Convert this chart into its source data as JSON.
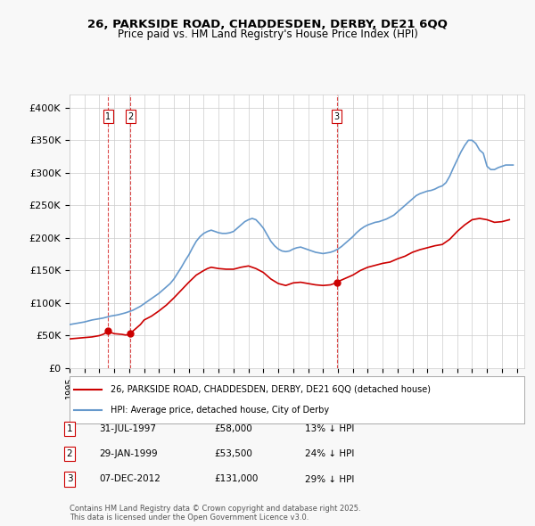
{
  "title": "26, PARKSIDE ROAD, CHADDESDEN, DERBY, DE21 6QQ",
  "subtitle": "Price paid vs. HM Land Registry's House Price Index (HPI)",
  "hpi_label": "HPI: Average price, detached house, City of Derby",
  "property_label": "26, PARKSIDE ROAD, CHADDESDEN, DERBY, DE21 6QQ (detached house)",
  "hpi_color": "#6699cc",
  "property_color": "#cc0000",
  "vline_color": "#cc0000",
  "background_color": "#f8f8f8",
  "plot_bg_color": "#ffffff",
  "ylim": [
    0,
    420000
  ],
  "yticks": [
    0,
    50000,
    100000,
    150000,
    200000,
    250000,
    300000,
    350000,
    400000
  ],
  "ytick_labels": [
    "£0",
    "£50K",
    "£100K",
    "£150K",
    "£200K",
    "£250K",
    "£300K",
    "£350K",
    "£400K"
  ],
  "sale_dates": [
    1997.58,
    1999.08,
    2012.92
  ],
  "sale_prices": [
    58000,
    53500,
    131000
  ],
  "sale_labels": [
    "1",
    "2",
    "3"
  ],
  "table_rows": [
    {
      "num": "1",
      "date": "31-JUL-1997",
      "price": "£58,000",
      "hpi": "13% ↓ HPI"
    },
    {
      "num": "2",
      "date": "29-JAN-1999",
      "price": "£53,500",
      "hpi": "24% ↓ HPI"
    },
    {
      "num": "3",
      "date": "07-DEC-2012",
      "price": "£131,000",
      "hpi": "29% ↓ HPI"
    }
  ],
  "footer": "Contains HM Land Registry data © Crown copyright and database right 2025.\nThis data is licensed under the Open Government Licence v3.0.",
  "hpi_years": [
    1995.0,
    1995.25,
    1995.5,
    1995.75,
    1996.0,
    1996.25,
    1996.5,
    1996.75,
    1997.0,
    1997.25,
    1997.5,
    1997.75,
    1998.0,
    1998.25,
    1998.5,
    1998.75,
    1999.0,
    1999.25,
    1999.5,
    1999.75,
    2000.0,
    2000.25,
    2000.5,
    2000.75,
    2001.0,
    2001.25,
    2001.5,
    2001.75,
    2002.0,
    2002.25,
    2002.5,
    2002.75,
    2003.0,
    2003.25,
    2003.5,
    2003.75,
    2004.0,
    2004.25,
    2004.5,
    2004.75,
    2005.0,
    2005.25,
    2005.5,
    2005.75,
    2006.0,
    2006.25,
    2006.5,
    2006.75,
    2007.0,
    2007.25,
    2007.5,
    2007.75,
    2008.0,
    2008.25,
    2008.5,
    2008.75,
    2009.0,
    2009.25,
    2009.5,
    2009.75,
    2010.0,
    2010.25,
    2010.5,
    2010.75,
    2011.0,
    2011.25,
    2011.5,
    2011.75,
    2012.0,
    2012.25,
    2012.5,
    2012.75,
    2013.0,
    2013.25,
    2013.5,
    2013.75,
    2014.0,
    2014.25,
    2014.5,
    2014.75,
    2015.0,
    2015.25,
    2015.5,
    2015.75,
    2016.0,
    2016.25,
    2016.5,
    2016.75,
    2017.0,
    2017.25,
    2017.5,
    2017.75,
    2018.0,
    2018.25,
    2018.5,
    2018.75,
    2019.0,
    2019.25,
    2019.5,
    2019.75,
    2020.0,
    2020.25,
    2020.5,
    2020.75,
    2021.0,
    2021.25,
    2021.5,
    2021.75,
    2022.0,
    2022.25,
    2022.5,
    2022.75,
    2023.0,
    2023.25,
    2023.5,
    2023.75,
    2024.0,
    2024.25,
    2024.5,
    2024.75
  ],
  "hpi_values": [
    67000,
    68000,
    69000,
    70000,
    71000,
    72500,
    74000,
    75000,
    76000,
    77000,
    78500,
    80000,
    81000,
    82000,
    83500,
    85000,
    87000,
    89000,
    92000,
    95000,
    99000,
    103000,
    107000,
    111000,
    115000,
    120000,
    125000,
    130000,
    137000,
    146000,
    155000,
    165000,
    174000,
    185000,
    195000,
    202000,
    207000,
    210000,
    212000,
    210000,
    208000,
    207000,
    207000,
    208000,
    210000,
    215000,
    220000,
    225000,
    228000,
    230000,
    228000,
    222000,
    215000,
    205000,
    195000,
    188000,
    183000,
    180000,
    179000,
    180000,
    183000,
    185000,
    186000,
    184000,
    182000,
    180000,
    178000,
    177000,
    176000,
    177000,
    178000,
    180000,
    183000,
    187000,
    192000,
    197000,
    202000,
    208000,
    213000,
    217000,
    220000,
    222000,
    224000,
    225000,
    227000,
    229000,
    232000,
    235000,
    240000,
    245000,
    250000,
    255000,
    260000,
    265000,
    268000,
    270000,
    272000,
    273000,
    275000,
    278000,
    280000,
    285000,
    295000,
    308000,
    320000,
    332000,
    342000,
    350000,
    350000,
    345000,
    335000,
    330000,
    310000,
    305000,
    305000,
    308000,
    310000,
    312000,
    312000,
    312000
  ],
  "property_years": [
    1995.0,
    1995.5,
    1996.0,
    1996.5,
    1997.0,
    1997.25,
    1997.5,
    1997.58,
    1997.75,
    1998.0,
    1998.5,
    1998.75,
    1999.0,
    1999.08,
    1999.25,
    1999.5,
    1999.75,
    2000.0,
    2000.5,
    2001.0,
    2001.5,
    2002.0,
    2002.5,
    2003.0,
    2003.5,
    2004.0,
    2004.25,
    2004.5,
    2005.0,
    2005.5,
    2006.0,
    2006.5,
    2007.0,
    2007.5,
    2008.0,
    2008.5,
    2009.0,
    2009.5,
    2010.0,
    2010.5,
    2011.0,
    2011.5,
    2012.0,
    2012.5,
    2012.75,
    2012.92,
    2013.0,
    2013.5,
    2014.0,
    2014.5,
    2015.0,
    2015.5,
    2016.0,
    2016.5,
    2017.0,
    2017.5,
    2018.0,
    2018.5,
    2019.0,
    2019.5,
    2020.0,
    2020.5,
    2021.0,
    2021.5,
    2022.0,
    2022.5,
    2023.0,
    2023.5,
    2024.0,
    2024.5
  ],
  "property_values": [
    45000,
    46000,
    47000,
    48000,
    50000,
    52000,
    55000,
    58000,
    55000,
    53000,
    52000,
    51000,
    51500,
    53500,
    57000,
    62000,
    67000,
    74000,
    80000,
    88000,
    97000,
    108000,
    120000,
    132000,
    143000,
    150000,
    153000,
    155000,
    153000,
    152000,
    152000,
    155000,
    157000,
    153000,
    147000,
    137000,
    130000,
    127000,
    131000,
    132000,
    130000,
    128000,
    127000,
    128000,
    130000,
    131000,
    133000,
    138000,
    143000,
    150000,
    155000,
    158000,
    161000,
    163000,
    168000,
    172000,
    178000,
    182000,
    185000,
    188000,
    190000,
    198000,
    210000,
    220000,
    228000,
    230000,
    228000,
    224000,
    225000,
    228000
  ]
}
